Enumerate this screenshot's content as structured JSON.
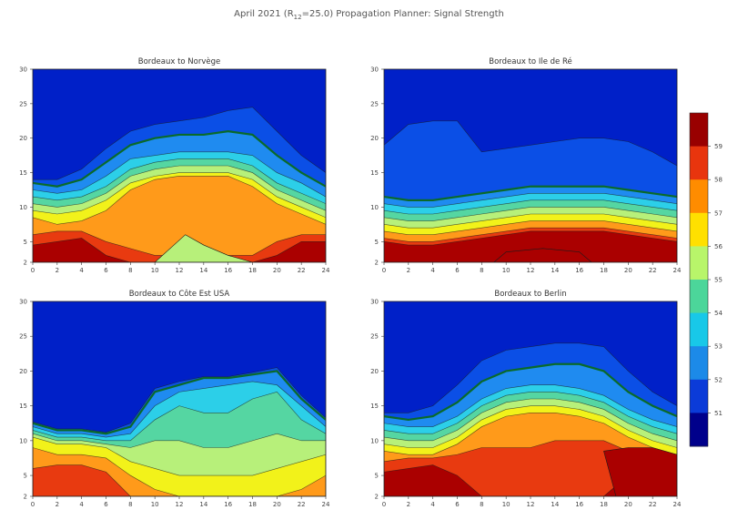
{
  "figure": {
    "title": "April 2021 (R",
    "title_sub": "12",
    "title_tail": "=25.0) Propagation Planner: Signal Strength"
  },
  "chart_data": [
    {
      "type": "heatmap",
      "title": "Bordeaux to  Norvège",
      "xlim": [
        0,
        24
      ],
      "ylim": [
        2,
        30
      ],
      "xticks": [
        "0",
        "2",
        "4",
        "6",
        "8",
        "10",
        "12",
        "14",
        "16",
        "18",
        "20",
        "22",
        "24"
      ],
      "yticks": [
        "2",
        "5",
        "10",
        "15",
        "20",
        "25",
        "30"
      ],
      "profiles": {
        "hours": [
          0,
          2,
          4,
          6,
          8,
          10,
          12,
          14,
          16,
          18,
          20,
          22,
          24
        ],
        "x_band_tops": [
          [
            4.5,
            5,
            5.5,
            3,
            2,
            2,
            2,
            2,
            2,
            2,
            3,
            5,
            5
          ],
          [
            6,
            6.5,
            6.5,
            5,
            4,
            3,
            3,
            3,
            3,
            3,
            5,
            6,
            6
          ],
          [
            8.5,
            7.5,
            8,
            9.5,
            12.5,
            14,
            14.5,
            14.5,
            14.5,
            13,
            10.5,
            9,
            7.5
          ],
          [
            9.5,
            9,
            9.5,
            11,
            13.5,
            14.5,
            15,
            15,
            15,
            14,
            11.5,
            10,
            8.5
          ],
          [
            10.5,
            10,
            10.5,
            12,
            14.5,
            15.5,
            16,
            16,
            16,
            15,
            12.5,
            11,
            9.5
          ],
          [
            11.5,
            11,
            11.5,
            13,
            15.5,
            16.5,
            17,
            17,
            17,
            16,
            13.5,
            12,
            10.5
          ],
          [
            12.5,
            12,
            12.5,
            14.5,
            17,
            17.5,
            18,
            18,
            18,
            17.5,
            15,
            13.5,
            11.5
          ],
          [
            13.5,
            13,
            14,
            16.5,
            19,
            20,
            20.5,
            20.5,
            21,
            20.5,
            17.5,
            15,
            13
          ],
          [
            14,
            14,
            15.5,
            18.5,
            21,
            22,
            22.5,
            23,
            24,
            24.5,
            21,
            17.5,
            15
          ]
        ]
      },
      "blobs": [
        {
          "level": 4,
          "points": [
            [
              12.5,
              6
            ],
            [
              14,
              4.5
            ],
            [
              16,
              3
            ],
            [
              18,
              2
            ],
            [
              10,
              2
            ]
          ]
        }
      ]
    },
    {
      "type": "heatmap",
      "title": "Bordeaux to Ile de Ré",
      "xlim": [
        0,
        24
      ],
      "ylim": [
        2,
        30
      ],
      "xticks": [
        "0",
        "2",
        "4",
        "6",
        "8",
        "10",
        "12",
        "14",
        "16",
        "18",
        "20",
        "22",
        "24"
      ],
      "yticks": [
        "2",
        "5",
        "10",
        "15",
        "20",
        "25",
        "30"
      ],
      "profiles": {
        "hours": [
          0,
          2,
          4,
          6,
          8,
          10,
          12,
          14,
          16,
          18,
          20,
          22,
          24
        ],
        "x_band_tops": [
          [
            5,
            4.5,
            4.5,
            5,
            5.5,
            6,
            6.5,
            6.5,
            6.5,
            6.5,
            6,
            5.5,
            5
          ],
          [
            5.5,
            5,
            5,
            5.5,
            6,
            6.5,
            7,
            7,
            7,
            7,
            6.5,
            6,
            5.5
          ],
          [
            6.5,
            6,
            6,
            6.5,
            7,
            7.5,
            8,
            8,
            8,
            8,
            7.5,
            7,
            6.5
          ],
          [
            7.5,
            7,
            7,
            7.5,
            8,
            8.5,
            9,
            9,
            9,
            9,
            8.5,
            8,
            7.5
          ],
          [
            8.5,
            8,
            8,
            8.5,
            9,
            9.5,
            10,
            10,
            10,
            10,
            9.5,
            9,
            8.5
          ],
          [
            9.5,
            9,
            9,
            9.5,
            10,
            10.5,
            11,
            11,
            11,
            11,
            10.5,
            10,
            9.5
          ],
          [
            10.5,
            10,
            10,
            10.5,
            11,
            11.5,
            12,
            12,
            12,
            12,
            11.5,
            11,
            10.5
          ],
          [
            11.5,
            11,
            11,
            11.5,
            12,
            12.5,
            13,
            13,
            13,
            13,
            12.5,
            12,
            11.5
          ],
          [
            19,
            22,
            22.5,
            22.5,
            18,
            18.5,
            19,
            19.5,
            20,
            20,
            19.5,
            18,
            16
          ]
        ]
      },
      "blobs": [
        {
          "level": 0,
          "points": [
            [
              9,
              2
            ],
            [
              10,
              3.5
            ],
            [
              13,
              4
            ],
            [
              16,
              3.5
            ],
            [
              17,
              2
            ]
          ]
        }
      ]
    },
    {
      "type": "heatmap",
      "title": "Bordeaux to Côte Est USA",
      "xlim": [
        0,
        24
      ],
      "ylim": [
        2,
        30
      ],
      "xticks": [
        "0",
        "2",
        "4",
        "6",
        "8",
        "10",
        "12",
        "14",
        "16",
        "18",
        "20",
        "22",
        "24"
      ],
      "yticks": [
        "2",
        "5",
        "10",
        "15",
        "20",
        "25",
        "30"
      ],
      "profiles": {
        "hours": [
          0,
          2,
          4,
          6,
          8,
          10,
          12,
          14,
          16,
          18,
          20,
          22,
          24
        ],
        "x_band_tops": [
          [
            2,
            2,
            2,
            2,
            2,
            2,
            2,
            2,
            2,
            2,
            2,
            2,
            2
          ],
          [
            6,
            6.5,
            6.5,
            5.5,
            2,
            2,
            2,
            2,
            2,
            2,
            2,
            2,
            2
          ],
          [
            9,
            8,
            8,
            7.5,
            5,
            3,
            2,
            2,
            2,
            2,
            2,
            3,
            5
          ],
          [
            10.5,
            9.5,
            9.5,
            9,
            7,
            6,
            5,
            5,
            5,
            5,
            6,
            7,
            8
          ],
          [
            11,
            10,
            10,
            9.5,
            9,
            10,
            10,
            9,
            9,
            10,
            11,
            10,
            10
          ],
          [
            11.5,
            10.5,
            10.5,
            10,
            10,
            13,
            15,
            14,
            14,
            16,
            17,
            13,
            11
          ],
          [
            12,
            11,
            11,
            10.5,
            11,
            15,
            17,
            17.5,
            18,
            18.5,
            18,
            15,
            12
          ],
          [
            12.5,
            11.5,
            11.5,
            11,
            12,
            17,
            18,
            19,
            19,
            19.5,
            20,
            16,
            13
          ],
          [
            12.7,
            11.7,
            11.7,
            11.2,
            12.5,
            17.5,
            18.5,
            19.2,
            19.2,
            19.8,
            20.5,
            16.5,
            13.3
          ]
        ]
      },
      "blobs": []
    },
    {
      "type": "heatmap",
      "title": "Bordeaux to Berlin",
      "xlim": [
        0,
        24
      ],
      "ylim": [
        2,
        30
      ],
      "xticks": [
        "0",
        "2",
        "4",
        "6",
        "8",
        "10",
        "12",
        "14",
        "16",
        "18",
        "20",
        "22",
        "24"
      ],
      "yticks": [
        "2",
        "5",
        "10",
        "15",
        "20",
        "25",
        "30"
      ],
      "profiles": {
        "hours": [
          0,
          2,
          4,
          6,
          8,
          10,
          12,
          14,
          16,
          18,
          20,
          22,
          24
        ],
        "x_band_tops": [
          [
            5.5,
            6,
            6.5,
            5,
            2,
            2,
            2,
            2,
            2,
            2,
            5,
            6,
            6
          ],
          [
            7,
            7.5,
            7.5,
            8,
            9,
            9,
            9,
            10,
            10,
            10,
            8.5,
            8,
            7
          ],
          [
            8.5,
            8,
            8,
            9.5,
            12,
            13.5,
            14,
            14,
            13.5,
            12.5,
            10.5,
            9,
            8
          ],
          [
            9.5,
            9,
            9,
            10.5,
            13,
            14.5,
            15,
            15,
            14.5,
            13.5,
            11.5,
            10,
            9
          ],
          [
            10.5,
            10,
            10,
            11.5,
            14,
            15.5,
            16,
            16,
            15.5,
            14.5,
            12.5,
            11,
            10
          ],
          [
            11.5,
            11,
            11,
            12.5,
            15,
            16.5,
            17,
            17,
            16.5,
            15.5,
            13.5,
            12,
            11
          ],
          [
            12.5,
            12,
            12,
            13.5,
            16,
            17.5,
            18,
            18,
            17.5,
            16.5,
            14.5,
            13,
            12
          ],
          [
            13.5,
            13,
            13.5,
            15.5,
            18.5,
            20,
            20.5,
            21,
            21,
            20,
            17,
            15,
            13.5
          ],
          [
            14,
            14,
            15,
            18,
            21.5,
            23,
            23.5,
            24,
            24,
            23.5,
            20,
            17,
            15
          ]
        ]
      },
      "blobs": [
        {
          "level": 0,
          "points": [
            [
              18,
              8.5
            ],
            [
              20,
              9
            ],
            [
              22,
              9
            ],
            [
              24,
              8
            ],
            [
              24,
              2
            ],
            [
              19,
              2
            ]
          ]
        }
      ]
    }
  ],
  "colorbar": {
    "ticks": [
      "59",
      "58",
      "57",
      "56",
      "55",
      "54",
      "53",
      "52",
      "51"
    ],
    "colors": [
      "#990000",
      "#e8350e",
      "#ff8c00",
      "#ffe000",
      "#b8f56a",
      "#4cd69a",
      "#18c8e8",
      "#1c8ae8",
      "#0b3bd8",
      "#00008b"
    ]
  },
  "band_colors": [
    "#aa0000",
    "#e83a10",
    "#ff9a1a",
    "#f2f21a",
    "#b7f07a",
    "#55d6a2",
    "#2ccfe8",
    "#1f8bf0",
    "#0b4fe6",
    "#0020c8"
  ]
}
